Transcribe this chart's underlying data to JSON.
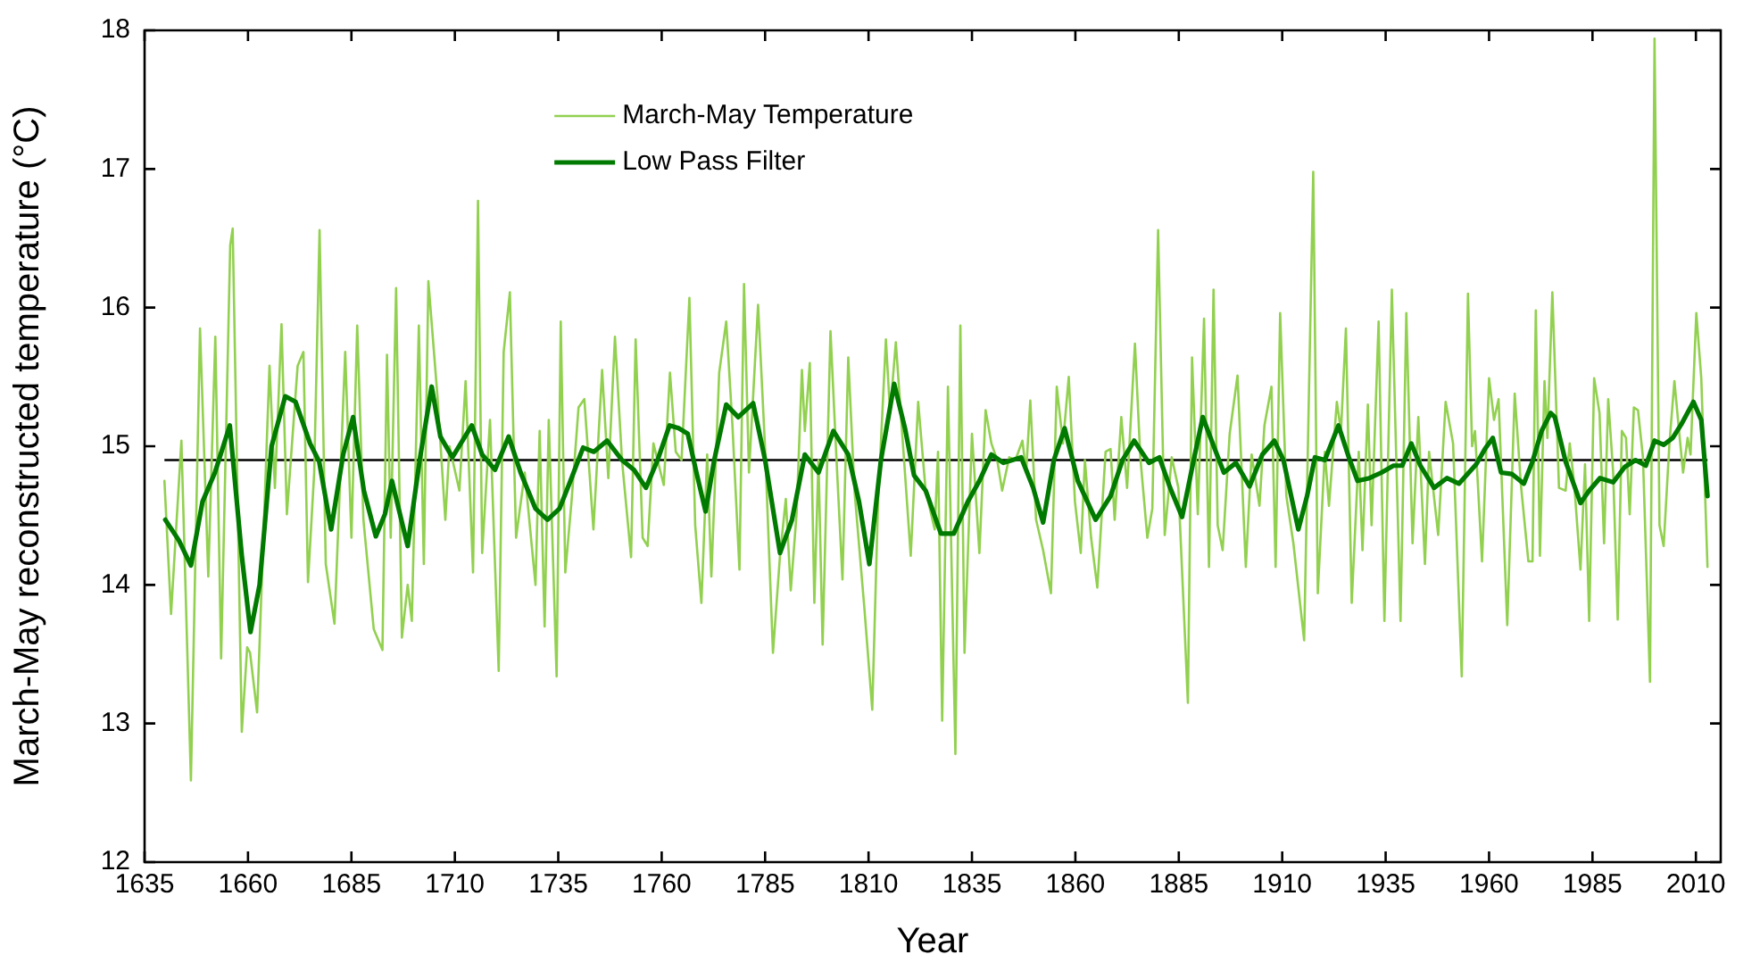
{
  "chart_data": {
    "type": "line",
    "xlabel": "Year",
    "ylabel": "March-May reconstructed temperature (°C)",
    "xlim": [
      1635,
      2016
    ],
    "xticks": [
      1635,
      1660,
      1685,
      1710,
      1735,
      1760,
      1785,
      1810,
      1835,
      1860,
      1885,
      1910,
      1935,
      1960,
      1985,
      2010
    ],
    "ylim": [
      12,
      18
    ],
    "yticks": [
      12,
      13,
      14,
      15,
      16,
      17,
      18
    ],
    "grid": false,
    "legend": "top left",
    "marker": "none",
    "line_style": "solid",
    "ref_lines": [
      {
        "axis": "y",
        "value": 14.9,
        "color": "#000000"
      }
    ],
    "series": [
      {
        "name": "March-May Temperature",
        "color": "#92d050",
        "x": [
          1639.8,
          1641.4,
          1643.9,
          1646.2,
          1648.4,
          1650.4,
          1652.1,
          1653.5,
          1655.7,
          1656.3,
          1658.5,
          1659.8,
          1660.5,
          1662.2,
          1665.2,
          1666.5,
          1668.1,
          1669.4,
          1672,
          1673.4,
          1674.5,
          1676,
          1677.3,
          1678.8,
          1680.9,
          1683.5,
          1685,
          1686.4,
          1687.9,
          1690.4,
          1692.5,
          1693.6,
          1694.5,
          1695.8,
          1697.2,
          1698.6,
          1699.6,
          1701.3,
          1702.5,
          1703.6,
          1705.8,
          1707.7,
          1708.7,
          1711.1,
          1712.6,
          1714.4,
          1715.6,
          1716.6,
          1718.5,
          1720.6,
          1721.8,
          1723.3,
          1724.8,
          1726.9,
          1729.5,
          1730.5,
          1731.7,
          1732.7,
          1734.6,
          1735.6,
          1736.7,
          1738.2,
          1739.9,
          1741.3,
          1743.5,
          1745.6,
          1747.1,
          1748.7,
          1750.4,
          1752.6,
          1753.7,
          1755.4,
          1756.6,
          1758,
          1760.5,
          1762,
          1763.4,
          1764.8,
          1766.7,
          1768.1,
          1769.6,
          1771,
          1772,
          1773.9,
          1775.6,
          1777.1,
          1778.8,
          1779.9,
          1781.1,
          1783.3,
          1785,
          1786.9,
          1788.6,
          1790,
          1791.2,
          1792.6,
          1793.9,
          1794.6,
          1795.8,
          1796.9,
          1797.9,
          1798.9,
          1800.8,
          1802.2,
          1803.7,
          1805.1,
          1806.6,
          1809,
          1810.9,
          1812.3,
          1814.2,
          1815.2,
          1816.6,
          1818.8,
          1820.2,
          1822,
          1823.8,
          1826,
          1826.8,
          1827.8,
          1829.2,
          1831,
          1832.2,
          1833.2,
          1835,
          1836.8,
          1838.3,
          1839.7,
          1841.1,
          1842.3,
          1844,
          1845.5,
          1847.2,
          1848.1,
          1849.1,
          1850.5,
          1852.2,
          1854.1,
          1855.5,
          1857,
          1858.4,
          1859.9,
          1861.3,
          1862.3,
          1863.8,
          1865.3,
          1867.3,
          1868.5,
          1869.5,
          1871.1,
          1872.5,
          1874.4,
          1875.7,
          1877.4,
          1878.6,
          1880,
          1881.6,
          1883.3,
          1884.9,
          1887.2,
          1888.2,
          1889.6,
          1891.1,
          1892.3,
          1893.4,
          1894.4,
          1895.6,
          1897.3,
          1899.2,
          1901.2,
          1902.6,
          1904.5,
          1905.7,
          1907.4,
          1908.4,
          1909.5,
          1911,
          1912.7,
          1915.3,
          1917.5,
          1918.6,
          1920.3,
          1921.3,
          1923.2,
          1924.2,
          1925.4,
          1926.8,
          1928.5,
          1929.4,
          1930.7,
          1931.6,
          1933.3,
          1934.7,
          1936.5,
          1938.6,
          1940,
          1941.5,
          1942.9,
          1944.5,
          1945.5,
          1947.7,
          1949.5,
          1951.3,
          1953.4,
          1954.9,
          1955.9,
          1956.6,
          1958.3,
          1960,
          1961.2,
          1962.3,
          1964.4,
          1966.2,
          1967.7,
          1969.5,
          1970.5,
          1971.3,
          1972.3,
          1973.4,
          1974.1,
          1975.3,
          1976.9,
          1978.5,
          1979.5,
          1980.6,
          1982.1,
          1983.2,
          1984.2,
          1985.4,
          1986.7,
          1987.8,
          1988.8,
          1990,
          1991.1,
          1992.1,
          1993.1,
          1994,
          1995,
          1996,
          1997.2,
          1998.9,
          2000,
          2001.2,
          2002.2,
          2003.6,
          2004.8,
          2005.8,
          2006.9,
          2008,
          2008.7,
          2010.1,
          2011.3,
          2012.8
        ],
        "values": [
          14.75,
          13.79,
          15.04,
          12.59,
          15.85,
          14.06,
          15.79,
          13.47,
          16.45,
          16.57,
          12.94,
          13.55,
          13.51,
          13.08,
          15.58,
          14.7,
          15.88,
          14.51,
          15.58,
          15.68,
          14.02,
          14.81,
          16.56,
          14.15,
          13.72,
          15.68,
          14.34,
          15.87,
          14.47,
          13.68,
          13.53,
          15.66,
          14.34,
          16.14,
          13.62,
          14.0,
          13.74,
          15.87,
          14.15,
          16.19,
          15.36,
          14.47,
          15.0,
          14.68,
          15.47,
          14.09,
          16.77,
          14.23,
          15.19,
          13.38,
          15.68,
          16.11,
          14.34,
          14.81,
          14.0,
          15.11,
          13.7,
          15.19,
          13.34,
          15.9,
          14.09,
          14.6,
          15.28,
          15.34,
          14.4,
          15.55,
          14.77,
          15.79,
          14.9,
          14.2,
          15.77,
          14.34,
          14.28,
          15.02,
          14.72,
          15.53,
          14.96,
          14.9,
          16.07,
          14.43,
          13.87,
          14.94,
          14.06,
          15.53,
          15.9,
          15.15,
          14.11,
          16.17,
          14.81,
          16.02,
          14.98,
          13.51,
          14.21,
          14.62,
          13.96,
          14.51,
          15.55,
          15.11,
          15.6,
          13.87,
          14.9,
          13.57,
          15.83,
          14.94,
          14.04,
          15.64,
          14.68,
          13.83,
          13.1,
          14.6,
          15.77,
          15.24,
          15.75,
          14.81,
          14.21,
          15.32,
          14.68,
          14.4,
          14.96,
          13.02,
          15.43,
          12.78,
          15.87,
          13.51,
          15.09,
          14.23,
          15.26,
          15.02,
          14.9,
          14.68,
          14.92,
          14.9,
          15.04,
          14.81,
          15.33,
          14.47,
          14.25,
          13.94,
          15.43,
          15.02,
          15.5,
          14.6,
          14.23,
          14.9,
          14.34,
          13.98,
          14.96,
          14.98,
          14.47,
          15.21,
          14.7,
          15.74,
          14.92,
          14.34,
          14.55,
          16.56,
          14.36,
          14.92,
          14.7,
          13.15,
          15.64,
          14.51,
          15.92,
          14.13,
          16.13,
          14.43,
          14.25,
          15.09,
          15.51,
          14.13,
          14.94,
          14.57,
          15.15,
          15.43,
          14.13,
          15.96,
          14.64,
          14.3,
          13.6,
          16.98,
          13.94,
          14.96,
          14.57,
          15.32,
          15.11,
          15.85,
          13.87,
          14.96,
          14.25,
          15.3,
          14.43,
          15.9,
          13.74,
          16.13,
          13.74,
          15.96,
          14.3,
          15.21,
          14.15,
          14.96,
          14.36,
          15.32,
          15.02,
          13.34,
          16.1,
          15.0,
          15.11,
          14.17,
          15.49,
          15.19,
          15.34,
          13.71,
          15.38,
          14.72,
          14.17,
          14.17,
          15.98,
          14.21,
          15.47,
          15.06,
          16.11,
          14.7,
          14.68,
          15.02,
          14.72,
          14.11,
          14.87,
          13.74,
          15.49,
          15.24,
          14.3,
          15.34,
          14.81,
          13.75,
          15.11,
          15.06,
          14.51,
          15.28,
          15.26,
          14.92,
          13.3,
          17.94,
          14.43,
          14.28,
          15.02,
          15.47,
          15.15,
          14.81,
          15.06,
          14.94,
          15.96,
          15.49,
          14.13
        ]
      },
      {
        "name": "Low Pass Filter",
        "color": "#007a00",
        "x": [
          1640,
          1643.3,
          1646.2,
          1649,
          1652,
          1655.6,
          1658.5,
          1660.6,
          1662.8,
          1665.7,
          1669,
          1671.5,
          1675,
          1677.2,
          1680.1,
          1683,
          1685.4,
          1688,
          1690.9,
          1693.1,
          1694.8,
          1698.6,
          1701.5,
          1704.4,
          1706.5,
          1709.4,
          1714.1,
          1716.6,
          1719.7,
          1723,
          1725.9,
          1729.5,
          1732.4,
          1735.3,
          1738.2,
          1741,
          1743.6,
          1746.8,
          1750.4,
          1753.3,
          1756.2,
          1759,
          1761.9,
          1764.1,
          1766.3,
          1768.4,
          1770.6,
          1772.7,
          1775.6,
          1778.5,
          1782.1,
          1785,
          1788.6,
          1791.5,
          1794.6,
          1797.9,
          1801.5,
          1805.1,
          1807.7,
          1810.2,
          1813,
          1816.2,
          1818.8,
          1821,
          1823.8,
          1827.5,
          1830.6,
          1834,
          1836.8,
          1839.7,
          1842.6,
          1846.9,
          1849.8,
          1852.2,
          1854.8,
          1857.4,
          1860.6,
          1864.9,
          1868.5,
          1871.4,
          1874.2,
          1877.8,
          1880.3,
          1882.9,
          1885.8,
          1888.6,
          1890.8,
          1893.7,
          1895.9,
          1898.8,
          1902.1,
          1905.2,
          1908.1,
          1910.3,
          1913.9,
          1916,
          1917.9,
          1920.3,
          1923.6,
          1926.1,
          1928.2,
          1931.1,
          1934,
          1936.9,
          1939,
          1941.2,
          1943.4,
          1946.7,
          1949.8,
          1952.7,
          1956.9,
          1959,
          1960.9,
          1962.9,
          1965.5,
          1968.4,
          1970.5,
          1972.7,
          1974.9,
          1975.9,
          1978.5,
          1982.1,
          1984.2,
          1986.8,
          1990,
          1992.8,
          1995.4,
          1997.9,
          2000,
          2002.2,
          2004.4,
          2006.5,
          2009.4,
          2011.3,
          2012.8
        ],
        "values": [
          14.47,
          14.32,
          14.14,
          14.6,
          14.81,
          15.15,
          14.21,
          13.66,
          14.0,
          15.0,
          15.36,
          15.32,
          15.02,
          14.89,
          14.4,
          14.94,
          15.21,
          14.68,
          14.35,
          14.51,
          14.75,
          14.28,
          14.9,
          15.43,
          15.07,
          14.92,
          15.15,
          14.94,
          14.83,
          15.07,
          14.81,
          14.55,
          14.47,
          14.55,
          14.77,
          14.99,
          14.96,
          15.04,
          14.9,
          14.83,
          14.7,
          14.9,
          15.15,
          15.13,
          15.09,
          14.81,
          14.53,
          14.9,
          15.3,
          15.21,
          15.31,
          14.9,
          14.23,
          14.47,
          14.94,
          14.81,
          15.11,
          14.94,
          14.6,
          14.15,
          14.9,
          15.45,
          15.13,
          14.79,
          14.68,
          14.37,
          14.37,
          14.6,
          14.75,
          14.94,
          14.88,
          14.92,
          14.7,
          14.45,
          14.9,
          15.13,
          14.75,
          14.47,
          14.64,
          14.9,
          15.04,
          14.88,
          14.92,
          14.7,
          14.49,
          14.9,
          15.21,
          14.98,
          14.81,
          14.88,
          14.71,
          14.94,
          15.04,
          14.9,
          14.4,
          14.64,
          14.92,
          14.9,
          15.15,
          14.92,
          14.75,
          14.77,
          14.81,
          14.86,
          14.86,
          15.02,
          14.86,
          14.7,
          14.77,
          14.73,
          14.87,
          14.98,
          15.06,
          14.81,
          14.8,
          14.73,
          14.89,
          15.11,
          15.24,
          15.21,
          14.89,
          14.59,
          14.68,
          14.77,
          14.74,
          14.85,
          14.9,
          14.86,
          15.04,
          15.01,
          15.06,
          15.16,
          15.32,
          15.19,
          14.64
        ]
      }
    ]
  }
}
